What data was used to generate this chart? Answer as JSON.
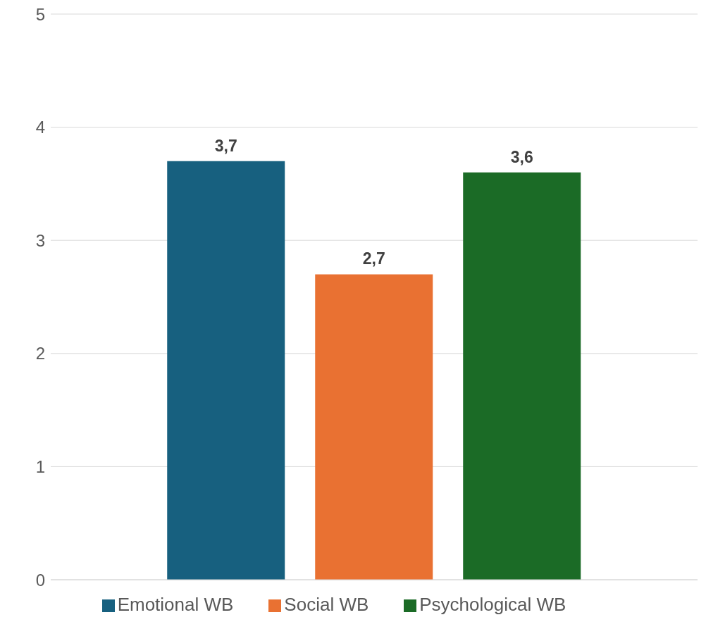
{
  "chart_data": {
    "type": "bar",
    "categories": [
      null
    ],
    "series": [
      {
        "name": "Emotional WB",
        "color": "#17607f",
        "values": [
          3.7
        ],
        "value_labels": [
          "3,7"
        ]
      },
      {
        "name": "Social WB",
        "color": "#e97132",
        "values": [
          2.7
        ],
        "value_labels": [
          "2,7"
        ]
      },
      {
        "name": "Psychological WB",
        "color": "#1b6b26",
        "values": [
          3.6
        ],
        "value_labels": [
          "3,6"
        ]
      }
    ],
    "ylim": [
      0,
      5
    ],
    "yticks": [
      0,
      1,
      2,
      3,
      4,
      5
    ],
    "grid": "y",
    "legend": "bottom"
  }
}
